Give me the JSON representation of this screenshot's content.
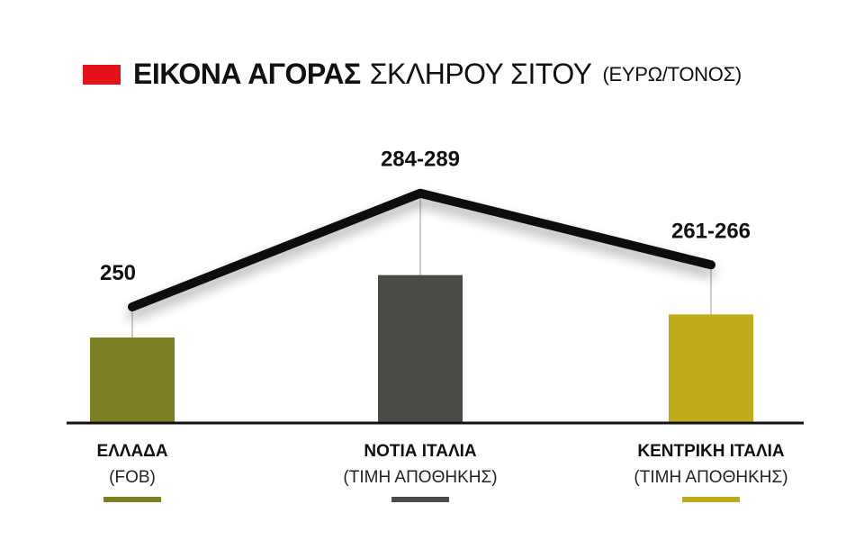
{
  "title": {
    "bold": "ΕΙΚΟΝΑ ΑΓΟΡΑΣ",
    "light": "ΣΚΛΗΡΟΥ ΣΙΤΟΥ",
    "unit": "(ΕΥΡΩ/ΤΟΝΟΣ)",
    "marker_color": "#e3121b"
  },
  "chart_data": {
    "type": "bar",
    "title": "ΕΙΚΟΝΑ ΑΓΟΡΑΣ ΣΚΛΗΡΟΥ ΣΙΤΟΥ (ΕΥΡΩ/ΤΟΝΟΣ)",
    "categories": [
      {
        "name": "ΕΛΛΑΔΑ",
        "sub": "(FOB)",
        "value": 250,
        "low": 250,
        "high": 250,
        "label": "250",
        "color": "#7e8024"
      },
      {
        "name": "ΝΟΤΙΑ ΙΤΑΛΙΑ",
        "sub": "(ΤΙΜΗ ΑΠΟΘΗΚΗΣ)",
        "value": 286.5,
        "low": 284,
        "high": 289,
        "label": "284-289",
        "color": "#4b4a47"
      },
      {
        "name": "ΚΕΝΤΡΙΚΗ ΙΤΑΛΙΑ",
        "sub": "(ΤΙΜΗ ΑΠΟΘΗΚΗΣ)",
        "value": 263.5,
        "low": 261,
        "high": 266,
        "label": "261-266",
        "color": "#bfaa1a"
      }
    ],
    "line_color": "#111111",
    "baseline_color": "#111111"
  }
}
